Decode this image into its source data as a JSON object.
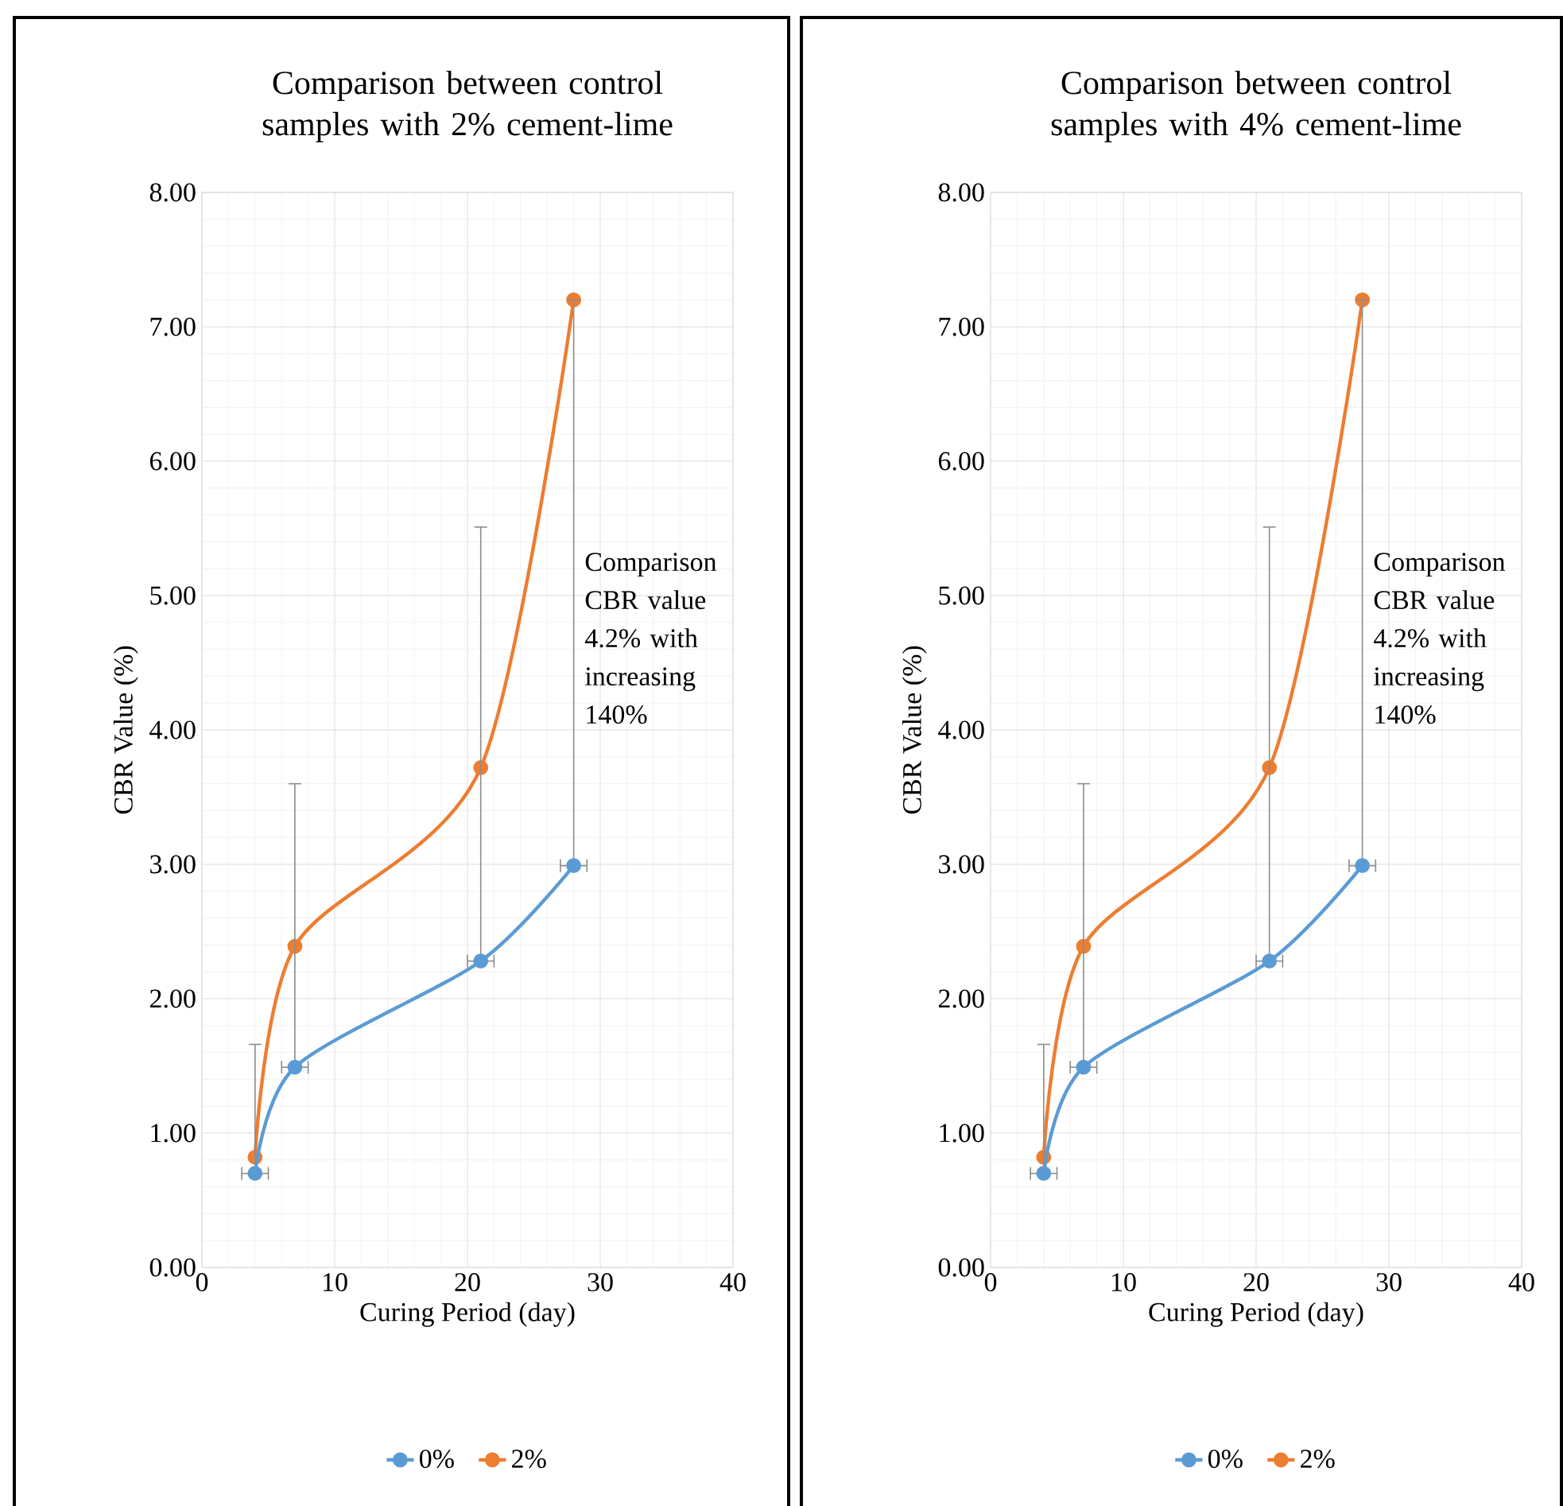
{
  "chart_data": [
    {
      "type": "line",
      "title": "Comparison between control samples with 2% cement-lime",
      "xlabel": "Curing Period (day)",
      "ylabel": "CBR Value (%)",
      "annotations": [
        "Comparison CBR value 4.2% with increasing 140%"
      ],
      "series": [
        {
          "name": "0%",
          "color": "#5b9bd5",
          "x": [
            4,
            7,
            21,
            28
          ],
          "values": [
            0.7,
            1.49,
            2.28,
            2.99
          ],
          "errors": [
            [
              0.7,
              1.66
            ],
            [
              1.49,
              3.6
            ],
            [
              2.28,
              5.51
            ],
            [
              2.99,
              7.2
            ]
          ],
          "xerrors": [
            1,
            1,
            1,
            1
          ]
        },
        {
          "name": "2%",
          "color": "#ed7d31",
          "x": [
            4,
            7,
            21,
            28
          ],
          "values": [
            0.82,
            2.39,
            3.72,
            7.2
          ]
        }
      ],
      "xlim": [
        0,
        40
      ],
      "xticks": [
        0,
        10,
        20,
        30,
        40
      ],
      "ylim": [
        0,
        8
      ],
      "yticks": [
        {
          "value": 0,
          "label": "0.00"
        },
        {
          "value": 1,
          "label": "1.00"
        },
        {
          "value": 2,
          "label": "2.00"
        },
        {
          "value": 3,
          "label": "3.00"
        },
        {
          "value": 4,
          "label": "4.00"
        },
        {
          "value": 5,
          "label": "5.00"
        },
        {
          "value": 6,
          "label": "6.00"
        },
        {
          "value": 7,
          "label": "7.00"
        },
        {
          "value": 8,
          "label": "8.00"
        }
      ],
      "grid": true,
      "legend": "bottom",
      "marker": "circle",
      "line_style": "solid"
    },
    {
      "type": "line",
      "title": "Comparison between control samples with 4% cement-lime",
      "xlabel": "Curing Period (day)",
      "ylabel": "CBR Value (%)",
      "annotations": [
        "Comparison CBR value 4.2% with increasing 140%"
      ],
      "series": [
        {
          "name": "0%",
          "color": "#5b9bd5",
          "x": [
            4,
            7,
            21,
            28
          ],
          "values": [
            0.7,
            1.49,
            2.28,
            2.99
          ],
          "errors": [
            [
              0.7,
              1.66
            ],
            [
              1.49,
              3.6
            ],
            [
              2.28,
              5.51
            ],
            [
              2.99,
              7.2
            ]
          ],
          "xerrors": [
            1,
            1,
            1,
            1
          ]
        },
        {
          "name": "2%",
          "color": "#ed7d31",
          "x": [
            4,
            7,
            21,
            28
          ],
          "values": [
            0.82,
            2.39,
            3.72,
            7.2
          ]
        }
      ],
      "xlim": [
        0,
        40
      ],
      "xticks": [
        0,
        10,
        20,
        30,
        40
      ],
      "ylim": [
        0,
        8
      ],
      "yticks": [
        {
          "value": 0,
          "label": "0.00"
        },
        {
          "value": 1,
          "label": "1.00"
        },
        {
          "value": 2,
          "label": "2.00"
        },
        {
          "value": 3,
          "label": "3.00"
        },
        {
          "value": 4,
          "label": "4.00"
        },
        {
          "value": 5,
          "label": "5.00"
        },
        {
          "value": 6,
          "label": "6.00"
        },
        {
          "value": 7,
          "label": "7.00"
        },
        {
          "value": 8,
          "label": "8.00"
        }
      ],
      "grid": true,
      "legend": "bottom",
      "marker": "circle",
      "line_style": "solid"
    }
  ]
}
